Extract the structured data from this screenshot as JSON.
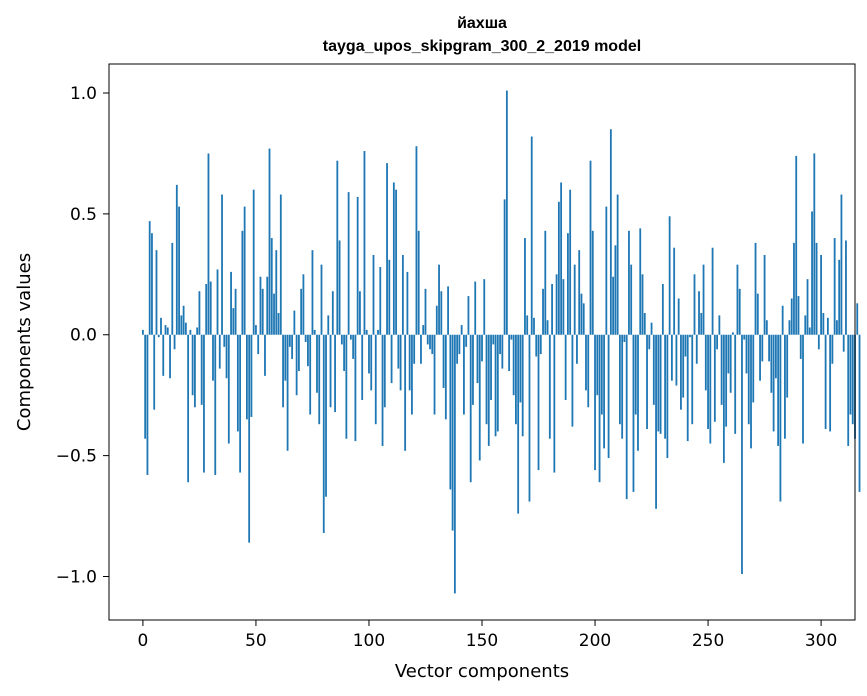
{
  "chart_data": {
    "type": "bar",
    "title": "йахша",
    "subtitle": "tayga_upos_skipgram_300_2_2019 model",
    "xlabel": "Vector components",
    "ylabel": "Components values",
    "xlim": [
      -15,
      315
    ],
    "ylim": [
      -1.18,
      1.12
    ],
    "xticks": [
      0,
      50,
      100,
      150,
      200,
      250,
      300
    ],
    "yticks": [
      1.0,
      0.5,
      0.0,
      -0.5,
      -1.0
    ],
    "ytick_labels": [
      "1.0",
      "0.5",
      "0.0",
      "−0.5",
      "−1.0"
    ],
    "grid": false,
    "color": "#1f77b4",
    "values": [
      0.02,
      -0.43,
      -0.58,
      0.47,
      0.42,
      -0.31,
      0.35,
      -0.01,
      0.07,
      -0.17,
      0.04,
      0.03,
      -0.18,
      0.38,
      -0.06,
      0.62,
      0.53,
      0.08,
      0.12,
      0.05,
      -0.61,
      0.02,
      -0.25,
      -0.3,
      0.03,
      0.18,
      -0.29,
      -0.57,
      0.21,
      0.75,
      0.22,
      -0.19,
      -0.58,
      0.27,
      -0.14,
      0.58,
      -0.05,
      -0.18,
      -0.45,
      0.26,
      0.11,
      0.19,
      -0.4,
      -0.57,
      0.43,
      0.53,
      -0.35,
      -0.86,
      -0.34,
      0.6,
      0.04,
      -0.08,
      0.24,
      0.19,
      -0.17,
      0.24,
      0.77,
      0.4,
      0.17,
      0.35,
      0.09,
      0.58,
      -0.3,
      -0.19,
      -0.48,
      -0.05,
      -0.1,
      0.1,
      -0.25,
      -0.15,
      0.19,
      0.25,
      -0.03,
      -0.13,
      -0.33,
      0.35,
      0.02,
      -0.24,
      -0.37,
      0.29,
      -0.82,
      -0.67,
      0.08,
      -0.3,
      0.18,
      -0.32,
      0.72,
      0.39,
      -0.04,
      -0.15,
      -0.43,
      0.59,
      -0.02,
      -0.1,
      -0.44,
      0.57,
      0.18,
      -0.27,
      0.76,
      0.02,
      -0.16,
      -0.23,
      0.33,
      -0.37,
      0.02,
      0.28,
      -0.46,
      -0.3,
      0.71,
      0.31,
      -0.2,
      0.63,
      0.6,
      -0.14,
      -0.23,
      0.33,
      -0.48,
      0.26,
      -0.23,
      -0.33,
      -0.12,
      0.78,
      0.43,
      -0.12,
      0.04,
      0.19,
      -0.04,
      -0.06,
      -0.08,
      -0.33,
      0.12,
      0.29,
      0.18,
      -0.22,
      -0.35,
      0.2,
      -0.64,
      -0.81,
      -1.07,
      -0.12,
      -0.08,
      0.04,
      -0.33,
      -0.05,
      0.16,
      -0.61,
      -0.29,
      0.22,
      -0.2,
      -0.52,
      -0.11,
      0.23,
      -0.37,
      -0.46,
      -0.27,
      -0.04,
      -0.42,
      -0.4,
      -0.08,
      -0.14,
      0.56,
      1.01,
      -0.15,
      -0.02,
      -0.25,
      -0.37,
      -0.74,
      -0.28,
      -0.42,
      0.4,
      0.08,
      -0.69,
      0.82,
      0.07,
      -0.09,
      -0.56,
      -0.08,
      0.19,
      0.43,
      0.06,
      -0.43,
      0.21,
      -0.57,
      0.25,
      0.55,
      0.63,
      0.23,
      -0.27,
      0.42,
      0.6,
      -0.38,
      0.29,
      -0.12,
      0.35,
      0.17,
      0.13,
      -0.23,
      -0.3,
      0.72,
      0.43,
      -0.56,
      -0.25,
      -0.61,
      -0.33,
      -0.47,
      0.53,
      -0.51,
      0.85,
      0.24,
      0.37,
      0.58,
      -0.37,
      -0.43,
      -0.03,
      -0.68,
      0.43,
      0.29,
      -0.65,
      -0.33,
      -0.48,
      0.44,
      0.25,
      0.09,
      -0.39,
      -0.06,
      0.05,
      -0.29,
      -0.72,
      -0.4,
      -0.41,
      0.21,
      -0.43,
      -0.51,
      0.49,
      -0.19,
      0.36,
      -0.21,
      0.15,
      -0.31,
      -0.26,
      -0.09,
      -0.44,
      -0.01,
      -0.37,
      0.25,
      -0.12,
      0.18,
      0.09,
      0.29,
      -0.23,
      -0.39,
      -0.45,
      0.36,
      -0.36,
      -0.06,
      0.08,
      -0.29,
      -0.53,
      -0.38,
      -0.16,
      -0.24,
      0.01,
      -0.41,
      0.29,
      0.19,
      -0.99,
      -0.02,
      -0.16,
      -0.37,
      -0.47,
      -0.28,
      0.38,
      0.17,
      -0.19,
      -0.11,
      0.33,
      0.06,
      -0.11,
      -0.24,
      -0.4,
      -0.18,
      -0.46,
      -0.69,
      0.12,
      -0.43,
      -0.26,
      0.06,
      0.15,
      0.38,
      0.74,
      0.16,
      -0.1,
      -0.45,
      0.08,
      0.23,
      0.03,
      0.51,
      0.75,
      0.38,
      -0.06,
      0.33,
      0.09,
      -0.39,
      0.07,
      -0.4,
      -0.12,
      0.4,
      0.06,
      0.31,
      0.58,
      -0.07,
      0.39,
      -0.46,
      -0.33,
      -0.37,
      -0.43,
      0.13,
      -0.65
    ]
  }
}
